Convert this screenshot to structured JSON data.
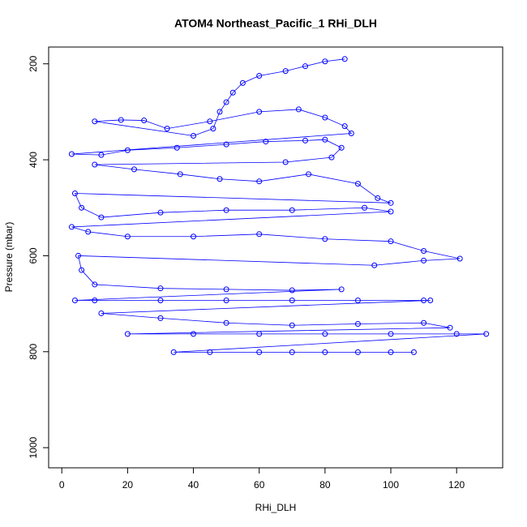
{
  "chart_data": {
    "type": "scatter",
    "lines": true,
    "title": "ATOM4 Northeast_Pacific_1 RHi_DLH",
    "x_label": "RHi_DLH",
    "y_label": "Pressure (mbar)",
    "xlim": [
      -4,
      134
    ],
    "ylim": [
      1042,
      165
    ],
    "y_reversed": true,
    "xticks": [
      0,
      20,
      40,
      60,
      80,
      100,
      120
    ],
    "yticks": [
      200,
      400,
      600,
      800,
      1000
    ],
    "series": [
      {
        "color": "#0000ff",
        "x": [
          86,
          80,
          74,
          68,
          60,
          55,
          52,
          50,
          48,
          46,
          40,
          10,
          18,
          25,
          32,
          45,
          60,
          72,
          80,
          86,
          88,
          3,
          12,
          20,
          35,
          50,
          62,
          74,
          80,
          85,
          82,
          68,
          10,
          22,
          36,
          48,
          60,
          75,
          90,
          96,
          100,
          4,
          6,
          12,
          30,
          50,
          70,
          92,
          100,
          3,
          8,
          20,
          40,
          60,
          80,
          100,
          110,
          121,
          110,
          95,
          5,
          6,
          10,
          30,
          50,
          70,
          85,
          4,
          10,
          30,
          50,
          70,
          90,
          110,
          112,
          12,
          30,
          50,
          70,
          90,
          110,
          118,
          20,
          40,
          60,
          80,
          100,
          120,
          129,
          34,
          45,
          60,
          70,
          80,
          90,
          100,
          107
        ],
        "y": [
          190,
          195,
          205,
          215,
          225,
          240,
          260,
          280,
          300,
          335,
          350,
          320,
          317,
          318,
          335,
          320,
          300,
          295,
          312,
          330,
          345,
          388,
          390,
          380,
          375,
          368,
          362,
          360,
          358,
          375,
          395,
          405,
          410,
          420,
          430,
          440,
          445,
          430,
          450,
          480,
          490,
          470,
          500,
          520,
          510,
          505,
          505,
          500,
          508,
          540,
          550,
          560,
          560,
          555,
          565,
          570,
          590,
          606,
          610,
          620,
          600,
          630,
          660,
          668,
          670,
          672,
          670,
          693,
          693,
          693,
          693,
          693,
          693,
          693,
          693,
          720,
          730,
          740,
          745,
          742,
          740,
          750,
          763,
          763,
          763,
          763,
          763,
          763,
          763,
          801,
          801,
          801,
          801,
          801,
          801,
          801,
          801
        ]
      }
    ]
  }
}
